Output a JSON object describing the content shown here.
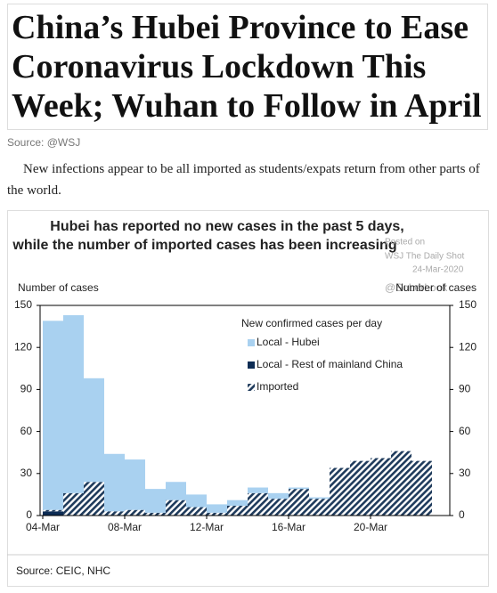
{
  "headline": [
    "China’s Hubei Province to Ease",
    "Coronavirus Lockdown This",
    "Week; Wuhan to Follow in April"
  ],
  "source": "Source: @WSJ",
  "paragraph": "New infections appear to be all imported as students/expats return from other parts of the world.",
  "watermark": [
    "Posted on",
    "WSJ The Daily Shot",
    "24-Mar-2020",
    "@SoberLook"
  ],
  "chart_data": {
    "type": "bar",
    "stacked": true,
    "title": [
      "Hubei has reported no new cases in the past 5 days,",
      "while the number of imported cases has been increasing"
    ],
    "y_label": "Number of cases",
    "y2_label": "Number of cases",
    "legend_title": "New confirmed cases per day",
    "categories": [
      "04-Mar",
      null,
      null,
      null,
      "08-Mar",
      null,
      null,
      null,
      "12-Mar",
      null,
      null,
      null,
      "16-Mar",
      null,
      null,
      null,
      "20-Mar",
      null,
      null
    ],
    "series": [
      {
        "name": "Local - Rest of mainland China",
        "color": "#0d2c54",
        "values": [
          3,
          0,
          0,
          0,
          0,
          0,
          0,
          0,
          0,
          0,
          0,
          0,
          0,
          0,
          0,
          0,
          0,
          0,
          0
        ]
      },
      {
        "name": "Imported",
        "color": "#1f3b5c",
        "pattern": "hatch",
        "values": [
          1,
          16,
          24,
          3,
          4,
          2,
          11,
          6,
          2,
          7,
          16,
          12,
          19,
          12,
          34,
          39,
          41,
          46,
          39
        ]
      },
      {
        "name": "Local - Hubei",
        "color": "#a9d1f0",
        "values": [
          135,
          127,
          74,
          41,
          36,
          17,
          13,
          9,
          6,
          4,
          4,
          4,
          1,
          1,
          0,
          0,
          0,
          0,
          0
        ]
      }
    ],
    "legend_order": [
      2,
      0,
      1
    ],
    "ylim": [
      0,
      150
    ],
    "yticks": [
      0,
      30,
      60,
      90,
      120,
      150
    ],
    "source": "Source: CEIC, NHC"
  }
}
